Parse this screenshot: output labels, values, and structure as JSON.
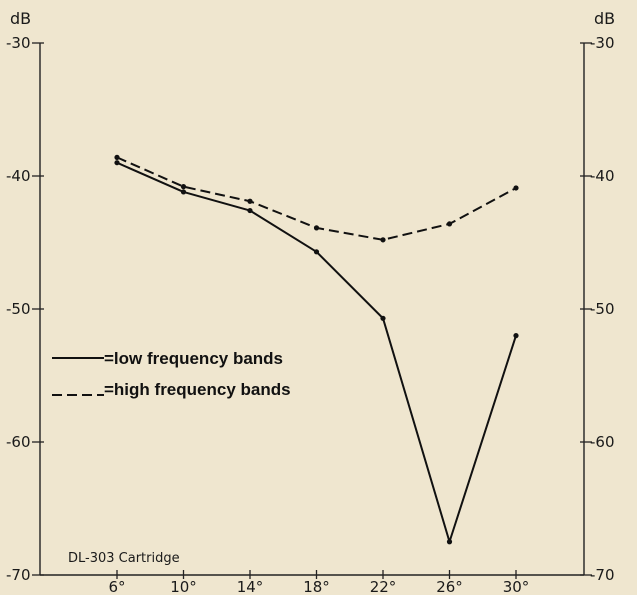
{
  "chart_data": {
    "type": "line",
    "title": "",
    "left_unit": "dB",
    "right_unit": "dB",
    "x": [
      "6°",
      "10°",
      "14°",
      "18°",
      "22°",
      "26°",
      "30°"
    ],
    "ylim": [
      -70,
      -30
    ],
    "y_ticks": [
      -30,
      -40,
      -50,
      -60,
      -70
    ],
    "grid": false,
    "legend_position": "center-left",
    "caption": "DL-303 Cartridge",
    "series": [
      {
        "name": "=low frequency bands",
        "style": "solid",
        "values": [
          -39.0,
          -41.2,
          -42.6,
          -45.7,
          -50.7,
          -67.5,
          -52.0
        ]
      },
      {
        "name": "=high frequency bands",
        "style": "dashed",
        "values": [
          -38.6,
          -40.8,
          -41.9,
          -43.9,
          -44.8,
          -43.6,
          -40.9
        ]
      }
    ]
  }
}
